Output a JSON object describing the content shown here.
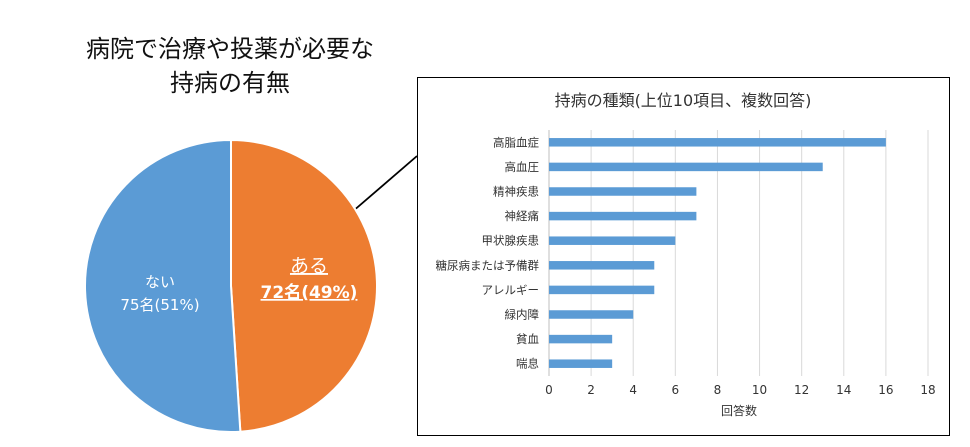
{
  "chart_data": [
    {
      "type": "pie",
      "title_lines": [
        "病院で治療や投薬が必要な",
        "持病の有無"
      ],
      "slices": [
        {
          "label": "ある",
          "value_label": "72名(49%)",
          "value": 72,
          "percent": 49,
          "color": "#ED7D31"
        },
        {
          "label": "ない",
          "value_label": "75名(51%)",
          "value": 75,
          "percent": 51,
          "color": "#5B9BD5"
        }
      ]
    },
    {
      "type": "bar",
      "orientation": "horizontal",
      "title": "持病の種類(上位10項目、複数回答)",
      "xlabel": "回答数",
      "xlim": [
        0,
        18
      ],
      "xticks": [
        0,
        2,
        4,
        6,
        8,
        10,
        12,
        14,
        16,
        18
      ],
      "grid": true,
      "bar_color": "#5B9BD5",
      "categories": [
        "高脂血症",
        "高血圧",
        "精神疾患",
        "神経痛",
        "甲状腺疾患",
        "糖尿病または予備群",
        "アレルギー",
        "緑内障",
        "貧血",
        "喘息"
      ],
      "values": [
        16,
        13,
        7,
        7,
        6,
        5,
        5,
        4,
        3,
        3
      ]
    }
  ]
}
